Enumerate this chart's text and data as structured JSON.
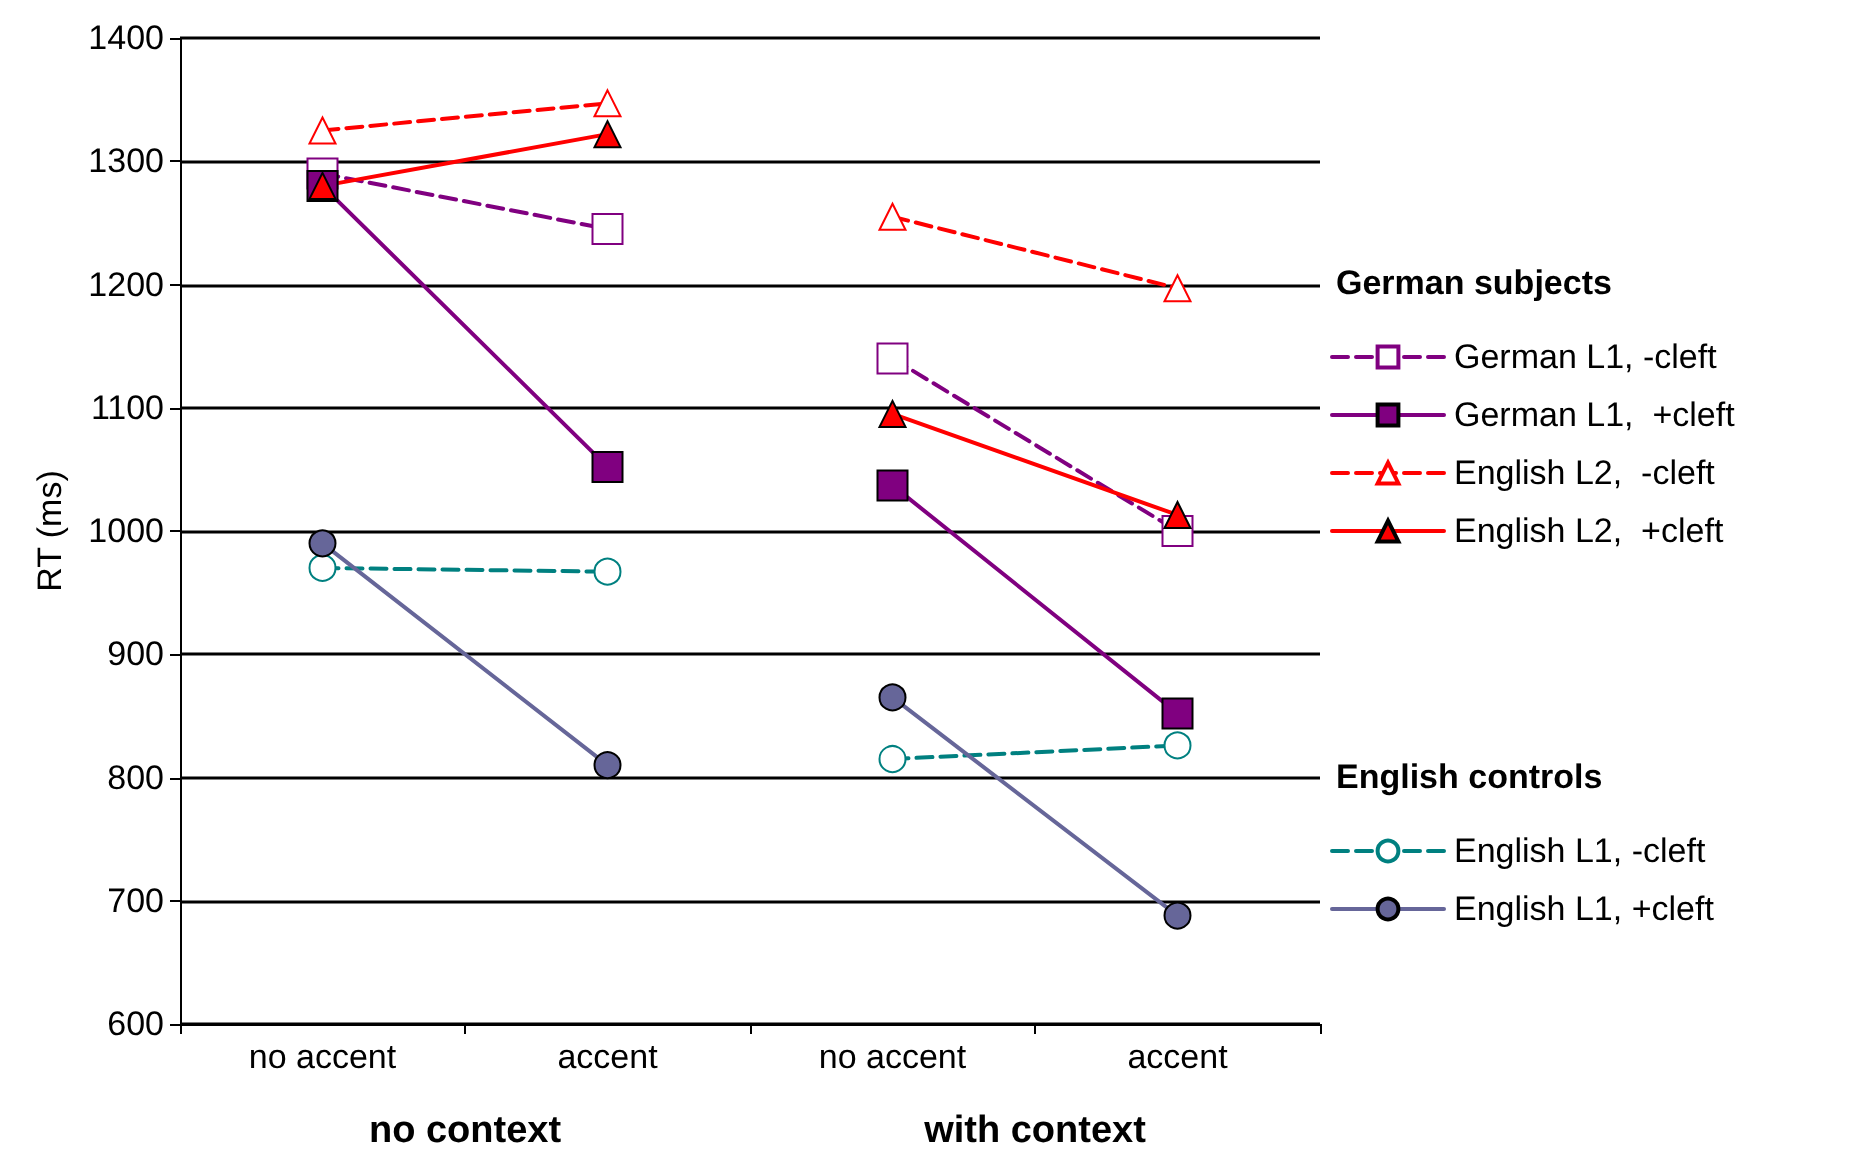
{
  "chart_data": {
    "type": "line",
    "ylabel": "RT (ms)",
    "categories": [
      "no accent",
      "accent",
      "no accent",
      "accent"
    ],
    "ylim": [
      600,
      1400
    ],
    "yticks": [
      600,
      700,
      800,
      900,
      1000,
      1100,
      1200,
      1300,
      1400
    ],
    "grid": "y",
    "legend": "right",
    "annotations": [
      "no context",
      "with context",
      "German subjects",
      "English controls"
    ],
    "series": [
      {
        "name": "German L1, -cleft",
        "color": "#800080",
        "marker": "square",
        "line_style": "dashed",
        "values": [
          1290,
          1245,
          1140,
          1000
        ]
      },
      {
        "name": "German L1,  +cleft",
        "color": "#800080",
        "marker": "square",
        "line_style": "solid",
        "values": [
          1280,
          1052,
          1037,
          852
        ]
      },
      {
        "name": "English L2,  -cleft",
        "color": "#ff0000",
        "marker": "triangle",
        "line_style": "dashed",
        "values": [
          1325,
          1347,
          1255,
          1197
        ]
      },
      {
        "name": "English L2,  +cleft",
        "color": "#ff0000",
        "marker": "triangle",
        "line_style": "solid",
        "values": [
          1280,
          1322,
          1095,
          1013
        ]
      },
      {
        "name": "English L1, -cleft",
        "color": "#008080",
        "marker": "circle",
        "line_style": "dashed",
        "values": [
          970,
          967,
          815,
          826
        ]
      },
      {
        "name": "English L1, +cleft",
        "color": "#666699",
        "marker": "circle",
        "line_style": "solid",
        "values": [
          990,
          810,
          865,
          688
        ]
      }
    ]
  }
}
